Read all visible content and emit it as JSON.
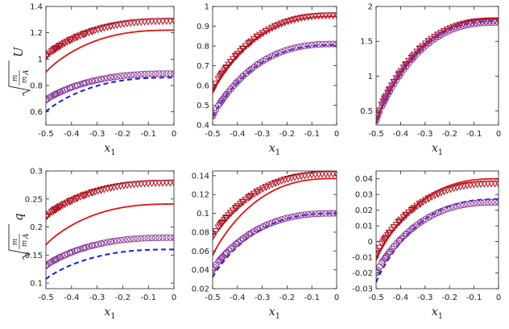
{
  "figure": {
    "ylabels": {
      "top_row": "U",
      "bottom_row": "q",
      "frac_num": "m",
      "frac_den": "m",
      "frac_den_sub": "A"
    }
  },
  "legend_colors": {
    "solid_red": "#e01414",
    "dashed_blue": "#1a1aee",
    "triangle_marker": "#b01020",
    "circle_marker": "#8a3a9a"
  },
  "chart_data": [
    {
      "type": "line",
      "xlabel": "x1",
      "x": [
        -0.5,
        0
      ],
      "xticks": [
        -0.5,
        -0.4,
        -0.3,
        -0.2,
        -0.1,
        0
      ],
      "xticklabels": [
        "-0.5",
        "-0.4",
        "-0.3",
        "-0.2",
        "-0.1",
        "0"
      ],
      "ylim": [
        0.5,
        1.4
      ],
      "yticks": [
        0.6,
        0.8,
        1,
        1.2,
        1.4
      ],
      "yticklabels": [
        "0.6",
        "0.8",
        "1",
        "1.2",
        "1.4"
      ],
      "ylabel": "sqrt(m/m_A) U",
      "series": [
        {
          "name": "solid red",
          "style": "solid",
          "start": 0.9,
          "end": 1.22
        },
        {
          "name": "dashed blue",
          "style": "dashed",
          "start": 0.6,
          "end": 0.86
        },
        {
          "name": "triangles",
          "style": "triangle",
          "start": 1.02,
          "end": 1.29
        },
        {
          "name": "circles",
          "style": "circle",
          "start": 0.69,
          "end": 0.89
        }
      ]
    },
    {
      "type": "line",
      "xlabel": "x1",
      "x": [
        -0.5,
        0
      ],
      "xticks": [
        -0.5,
        -0.4,
        -0.3,
        -0.2,
        -0.1,
        0
      ],
      "xticklabels": [
        "-0.5",
        "-0.4",
        "-0.3",
        "-0.2",
        "-0.1",
        "0"
      ],
      "ylim": [
        0.4,
        1.0
      ],
      "yticks": [
        0.4,
        0.5,
        0.6,
        0.7,
        0.8,
        0.9,
        1.0
      ],
      "yticklabels": [
        "0.4",
        "0.5",
        "0.6",
        "0.7",
        "0.8",
        "0.9",
        "1"
      ],
      "series": [
        {
          "name": "solid red",
          "style": "solid",
          "start": 0.57,
          "end": 0.95
        },
        {
          "name": "dashed blue",
          "style": "dashed",
          "start": 0.44,
          "end": 0.805
        },
        {
          "name": "triangles",
          "style": "triangle",
          "start": 0.575,
          "end": 0.955
        },
        {
          "name": "circles",
          "style": "circle",
          "start": 0.445,
          "end": 0.81
        }
      ]
    },
    {
      "type": "line",
      "xlabel": "x1",
      "x": [
        -0.5,
        0
      ],
      "xticks": [
        -0.5,
        -0.4,
        -0.3,
        -0.2,
        -0.1,
        0
      ],
      "xticklabels": [
        "-0.5",
        "-0.4",
        "-0.3",
        "-0.2",
        "-0.1",
        "0"
      ],
      "ylim": [
        0.3,
        2.0
      ],
      "yticks": [
        0.5,
        1.0,
        1.5,
        2.0
      ],
      "yticklabels": [
        "0.5",
        "1",
        "1.5",
        "2"
      ],
      "series": [
        {
          "name": "solid red",
          "style": "solid",
          "start": 0.35,
          "end": 1.82
        },
        {
          "name": "dashed blue",
          "style": "dashed",
          "start": 0.33,
          "end": 1.79
        },
        {
          "name": "triangles",
          "style": "triangle",
          "start": 0.38,
          "end": 1.8
        },
        {
          "name": "circles",
          "style": "circle",
          "start": 0.36,
          "end": 1.77
        }
      ]
    },
    {
      "type": "line",
      "xlabel": "x1",
      "x": [
        -0.5,
        0
      ],
      "xticks": [
        -0.5,
        -0.4,
        -0.3,
        -0.2,
        -0.1,
        0
      ],
      "xticklabels": [
        "-0.5",
        "-0.4",
        "-0.3",
        "-0.2",
        "-0.1",
        "0"
      ],
      "ylim": [
        0.09,
        0.3
      ],
      "yticks": [
        0.1,
        0.15,
        0.2,
        0.25,
        0.3
      ],
      "yticklabels": [
        "0.1",
        "0.15",
        "0.2",
        "0.25",
        "0.3"
      ],
      "ylabel": "sqrt(m/m_A) q",
      "series": [
        {
          "name": "solid red",
          "style": "solid",
          "start": 0.168,
          "end": 0.241
        },
        {
          "name": "dashed blue",
          "style": "dashed",
          "start": 0.107,
          "end": 0.16
        },
        {
          "name": "triangles",
          "style": "triangle",
          "start": 0.218,
          "end": 0.279
        },
        {
          "name": "circles",
          "style": "circle",
          "start": 0.131,
          "end": 0.181
        }
      ]
    },
    {
      "type": "line",
      "xlabel": "x1",
      "x": [
        -0.5,
        0
      ],
      "xticks": [
        -0.5,
        -0.4,
        -0.3,
        -0.2,
        -0.1,
        0
      ],
      "xticklabels": [
        "-0.5",
        "-0.4",
        "-0.3",
        "-0.2",
        "-0.1",
        "0"
      ],
      "ylim": [
        0.02,
        0.145
      ],
      "yticks": [
        0.02,
        0.04,
        0.06,
        0.08,
        0.1,
        0.12,
        0.14
      ],
      "yticklabels": [
        "0.02",
        "0.04",
        "0.06",
        "0.08",
        "0.1",
        "0.12",
        "0.14"
      ],
      "series": [
        {
          "name": "solid red",
          "style": "solid",
          "start": 0.055,
          "end": 0.137
        },
        {
          "name": "dashed blue",
          "style": "dashed",
          "start": 0.032,
          "end": 0.1
        },
        {
          "name": "triangles",
          "style": "triangle",
          "start": 0.075,
          "end": 0.142
        },
        {
          "name": "circles",
          "style": "circle",
          "start": 0.04,
          "end": 0.1
        }
      ]
    },
    {
      "type": "line",
      "xlabel": "x1",
      "x": [
        -0.5,
        0
      ],
      "xticks": [
        -0.5,
        -0.4,
        -0.3,
        -0.2,
        -0.1,
        0
      ],
      "xticklabels": [
        "-0.5",
        "-0.4",
        "-0.3",
        "-0.2",
        "-0.1",
        "0"
      ],
      "ylim": [
        -0.03,
        0.045
      ],
      "yticks": [
        -0.03,
        -0.02,
        -0.01,
        0,
        0.01,
        0.02,
        0.03,
        0.04
      ],
      "yticklabels": [
        "-0.03",
        "-0.02",
        "-0.01",
        "0",
        "0.01",
        "0.02",
        "0.03",
        "0.04"
      ],
      "series": [
        {
          "name": "solid red",
          "style": "solid",
          "start": -0.012,
          "end": 0.04
        },
        {
          "name": "dashed blue",
          "style": "dashed",
          "start": -0.026,
          "end": 0.027
        },
        {
          "name": "triangles",
          "style": "triangle",
          "start": -0.008,
          "end": 0.037
        },
        {
          "name": "circles",
          "style": "circle",
          "start": -0.02,
          "end": 0.025
        }
      ]
    }
  ]
}
